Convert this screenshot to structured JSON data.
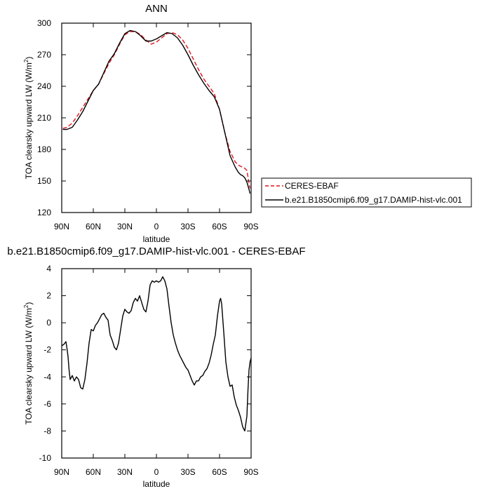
{
  "chart_data": [
    {
      "type": "line",
      "title": "ANN",
      "xlabel": "latitude",
      "ylabel": "TOA clearsky upward LW (W/m",
      "ylabel_sup": "2",
      "ylabel_close": ")",
      "xlim": [
        -90,
        90
      ],
      "ylim": [
        120,
        300
      ],
      "xticks": [
        {
          "v": -90,
          "label": "90N"
        },
        {
          "v": -60,
          "label": "60N"
        },
        {
          "v": -30,
          "label": "30N"
        },
        {
          "v": 0,
          "label": "0"
        },
        {
          "v": 30,
          "label": "30S"
        },
        {
          "v": 60,
          "label": "60S"
        },
        {
          "v": 90,
          "label": "90S"
        }
      ],
      "yticks": [
        120,
        150,
        180,
        210,
        240,
        270,
        300
      ],
      "series": [
        {
          "name": "CERES-EBAF",
          "color": "#e0141e",
          "dash": true,
          "x": [
            -89,
            -85,
            -80,
            -75,
            -70,
            -65,
            -60,
            -55,
            -50,
            -45,
            -40,
            -35,
            -30,
            -25,
            -20,
            -15,
            -10,
            -5,
            0,
            5,
            10,
            15,
            20,
            25,
            30,
            35,
            40,
            45,
            50,
            55,
            60,
            65,
            70,
            75,
            78,
            80,
            82,
            84,
            86,
            88,
            89
          ],
          "y": [
            200,
            201,
            205,
            212,
            220,
            228,
            236,
            242,
            252,
            262,
            270,
            280,
            289,
            292,
            292,
            289,
            284,
            280,
            282,
            286,
            290,
            291,
            289,
            284,
            276,
            266,
            256,
            247,
            240,
            233,
            218,
            196,
            178,
            168,
            165,
            164,
            163,
            162,
            160,
            148,
            143
          ]
        },
        {
          "name": "b.e21.B1850cmip6.f09_g17.DAMIP-hist-vlc.001",
          "color": "#000000",
          "dash": false,
          "x": [
            -89,
            -85,
            -80,
            -75,
            -70,
            -65,
            -60,
            -55,
            -50,
            -45,
            -40,
            -35,
            -30,
            -25,
            -20,
            -15,
            -10,
            -5,
            0,
            5,
            10,
            15,
            20,
            25,
            30,
            35,
            40,
            45,
            50,
            55,
            60,
            65,
            70,
            75,
            78,
            80,
            82,
            84,
            86,
            88,
            89
          ],
          "y": [
            199,
            199,
            201,
            208,
            216,
            226,
            236,
            242,
            253,
            264,
            271,
            281,
            290,
            293,
            292,
            288,
            283,
            283,
            285,
            288,
            291,
            290,
            286,
            279,
            270,
            260,
            251,
            243,
            236,
            230,
            218,
            196,
            174,
            163,
            158,
            156,
            155,
            153,
            149,
            142,
            138
          ]
        }
      ],
      "legend": "right"
    },
    {
      "type": "line",
      "title": "b.e21.B1850cmip6.f09_g17.DAMIP-hist-vlc.001 - CERES-EBAF",
      "xlabel": "latitude",
      "ylabel": "TOA clearsky upward LW (W/m",
      "ylabel_sup": "2",
      "ylabel_close": ")",
      "xlim": [
        -90,
        90
      ],
      "ylim": [
        -10,
        4
      ],
      "xticks": [
        {
          "v": -90,
          "label": "90N"
        },
        {
          "v": -60,
          "label": "60N"
        },
        {
          "v": -30,
          "label": "30N"
        },
        {
          "v": 0,
          "label": "0"
        },
        {
          "v": 30,
          "label": "30S"
        },
        {
          "v": 60,
          "label": "60S"
        },
        {
          "v": 90,
          "label": "90S"
        }
      ],
      "yticks": [
        -10,
        -8,
        -6,
        -4,
        -2,
        0,
        2,
        4
      ],
      "series": [
        {
          "color": "#000000",
          "dash": false,
          "x": [
            -90,
            -88,
            -86,
            -85,
            -84,
            -83,
            -82,
            -80,
            -78,
            -76,
            -74,
            -72,
            -70,
            -68,
            -66,
            -64,
            -62,
            -60,
            -58,
            -56,
            -54,
            -52,
            -50,
            -48,
            -46,
            -44,
            -42,
            -40,
            -38,
            -36,
            -34,
            -32,
            -30,
            -28,
            -26,
            -24,
            -22,
            -20,
            -18,
            -16,
            -14,
            -12,
            -10,
            -8,
            -6,
            -4,
            -2,
            0,
            2,
            4,
            6,
            8,
            10,
            12,
            14,
            16,
            18,
            20,
            22,
            24,
            26,
            28,
            30,
            32,
            34,
            36,
            38,
            40,
            42,
            44,
            46,
            48,
            50,
            52,
            54,
            56,
            58,
            60,
            61,
            62,
            64,
            66,
            68,
            70,
            72,
            74,
            76,
            78,
            80,
            82,
            84,
            86,
            87,
            88,
            89,
            90
          ],
          "y": [
            -1.7,
            -1.6,
            -1.4,
            -1.9,
            -2.5,
            -3.5,
            -4.2,
            -3.9,
            -4.3,
            -4.0,
            -4.2,
            -4.8,
            -4.9,
            -4.2,
            -3.0,
            -1.5,
            -0.5,
            -0.6,
            -0.2,
            0.0,
            0.3,
            0.6,
            0.7,
            0.4,
            0.2,
            -0.9,
            -1.3,
            -1.8,
            -2.0,
            -1.5,
            -0.5,
            0.5,
            1.0,
            0.8,
            0.7,
            0.9,
            1.5,
            1.8,
            1.6,
            2.0,
            1.5,
            1.0,
            0.8,
            1.6,
            2.8,
            3.1,
            3.0,
            3.1,
            3.0,
            3.1,
            3.4,
            3.1,
            2.5,
            1.2,
            0.0,
            -0.9,
            -1.5,
            -2.0,
            -2.4,
            -2.7,
            -3.0,
            -3.3,
            -3.5,
            -3.9,
            -4.3,
            -4.6,
            -4.3,
            -4.3,
            -4.0,
            -3.9,
            -3.6,
            -3.4,
            -3.0,
            -2.4,
            -1.6,
            -0.9,
            0.5,
            1.6,
            1.8,
            1.4,
            -0.7,
            -2.9,
            -4.0,
            -4.7,
            -4.6,
            -5.5,
            -6.1,
            -6.5,
            -7.0,
            -7.7,
            -8.0,
            -6.9,
            -5.0,
            -3.5,
            -2.9,
            -2.6
          ]
        }
      ]
    }
  ]
}
